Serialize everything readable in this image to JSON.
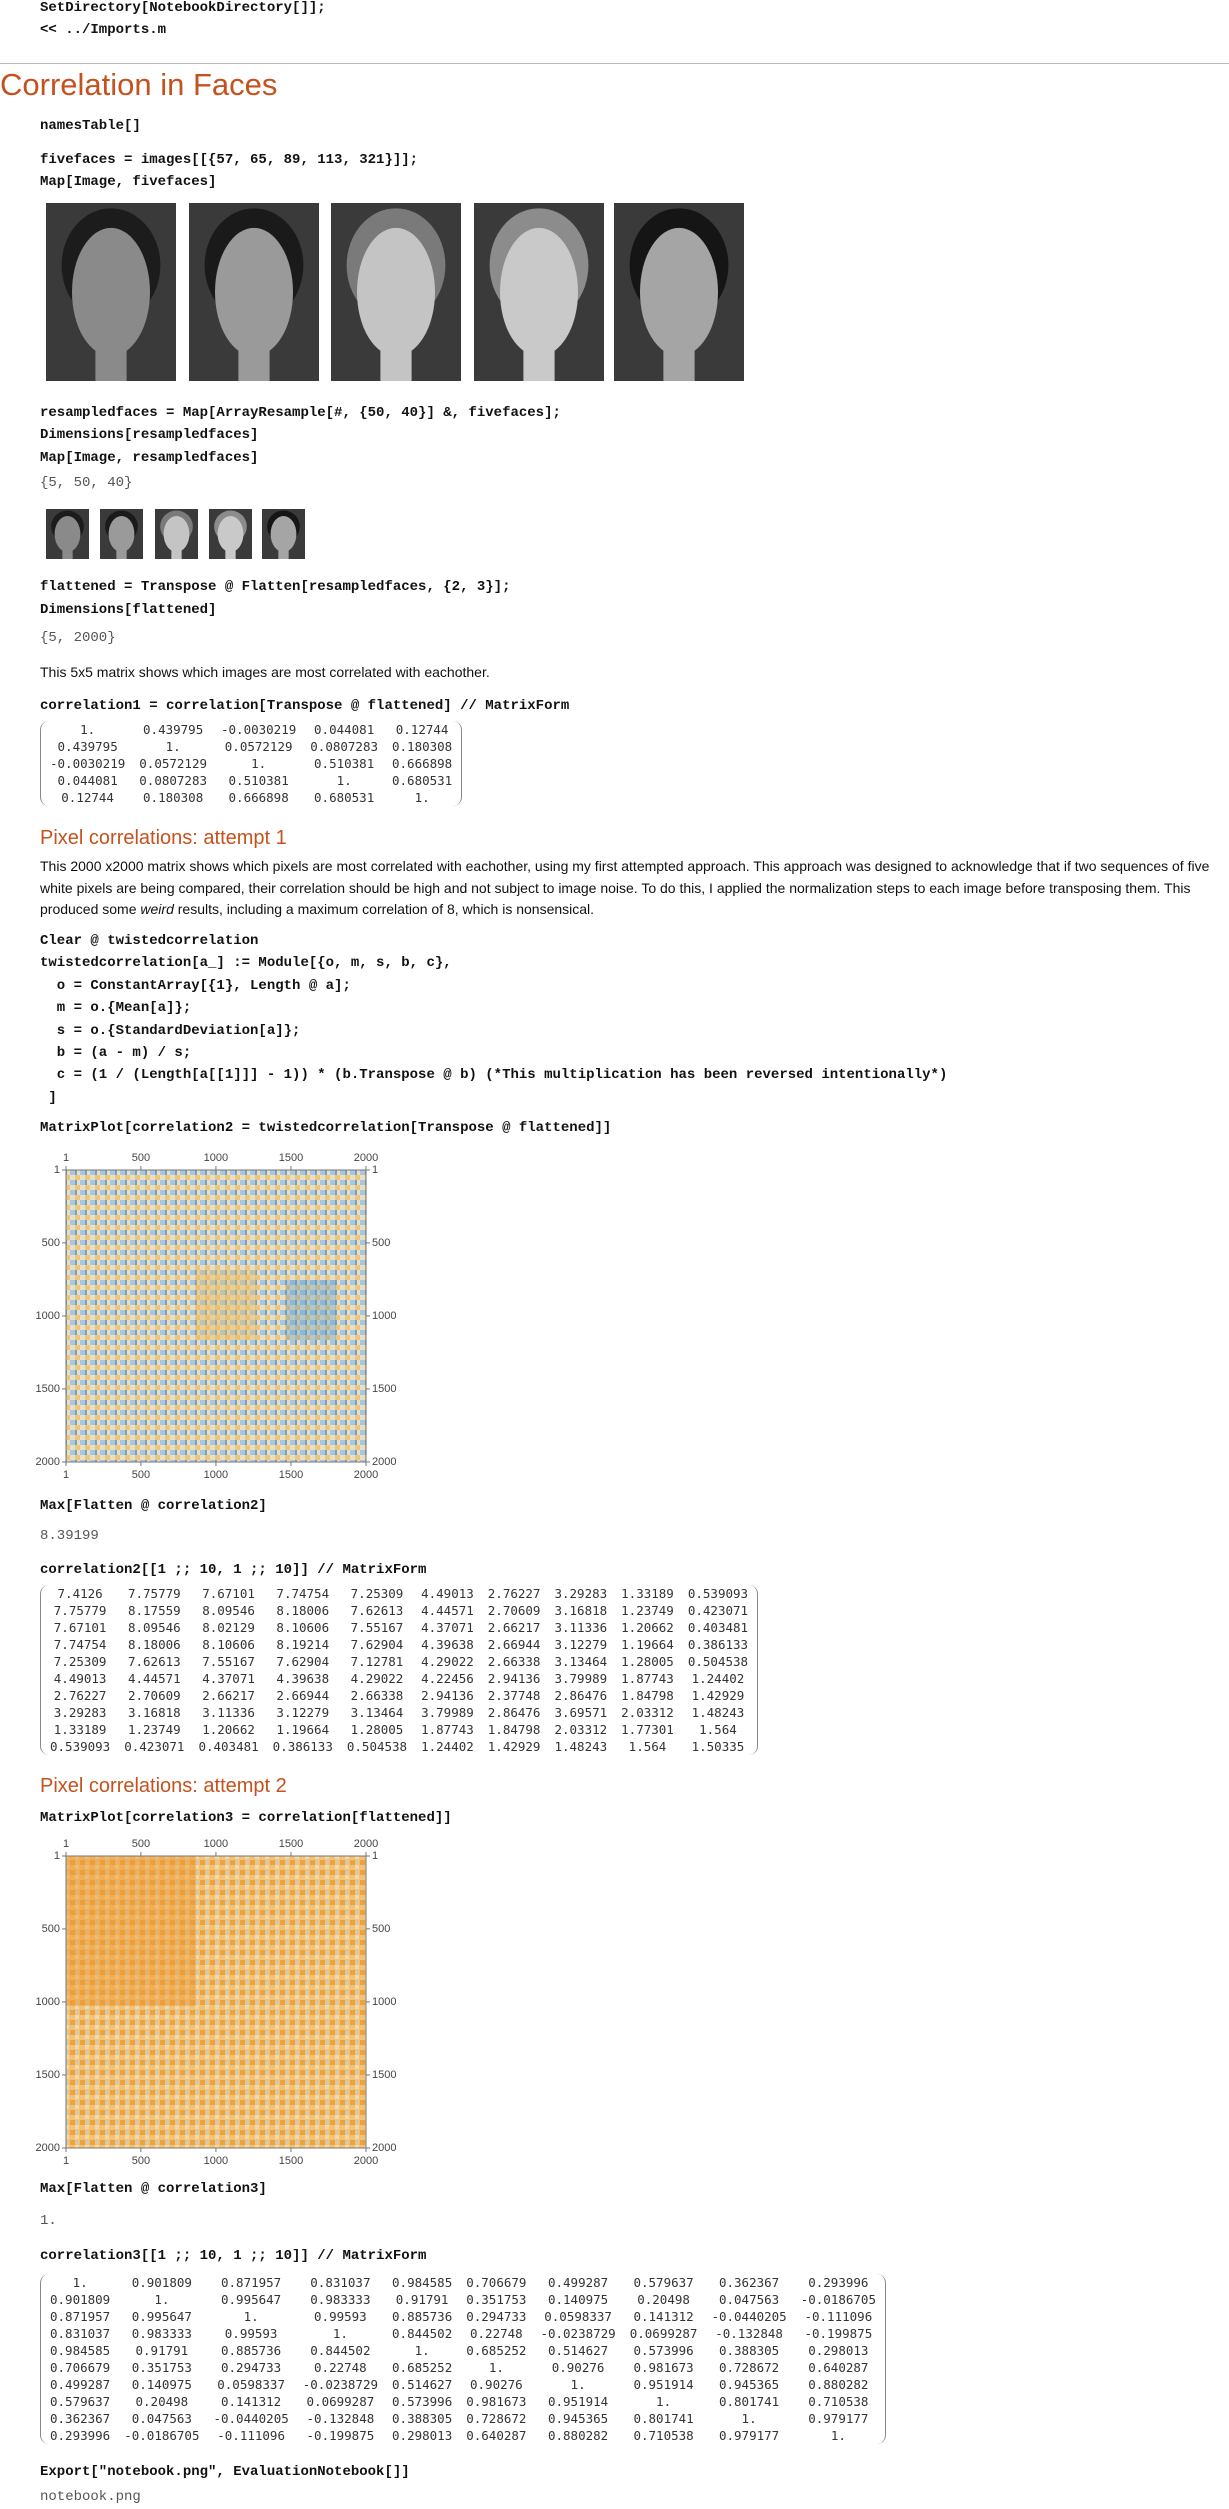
{
  "setup": [
    "SetDirectory[NotebookDirectory[]];",
    "<< ../Imports.m"
  ],
  "title": "Correlation in Faces",
  "names_input": "namesTable[]",
  "fivefaces_input": [
    "fivefaces = images[[{57, 65, 89, 113, 321}]];",
    "Map[Image, fivefaces]"
  ],
  "resample_input": [
    "resampledfaces = Map[ArrayResample[#, {50, 40}] &, fivefaces];",
    "Dimensions[resampledfaces]",
    "Map[Image, resampledfaces]"
  ],
  "resample_output": "{5, 50, 40}",
  "flatten_input": [
    "flattened = Transpose @ Flatten[resampledfaces, {2, 3}];",
    "Dimensions[flattened]"
  ],
  "flatten_output": "{5, 2000}",
  "matrix_text": "This 5x5 matrix shows which images are most correlated with eachother.",
  "correlation1_input": "correlation1 = correlation[Transpose @ flattened] // MatrixForm",
  "correlation1": [
    [
      "1.",
      "0.439795",
      "-0.0030219",
      "0.044081",
      "0.12744"
    ],
    [
      "0.439795",
      "1.",
      "0.0572129",
      "0.0807283",
      "0.180308"
    ],
    [
      "-0.0030219",
      "0.0572129",
      "1.",
      "0.510381",
      "0.666898"
    ],
    [
      "0.044081",
      "0.0807283",
      "0.510381",
      "1.",
      "0.680531"
    ],
    [
      "0.12744",
      "0.180308",
      "0.666898",
      "0.680531",
      "1."
    ]
  ],
  "plot_ticks": [
    1,
    500,
    1000,
    1500,
    2000
  ],
  "attempt1": {
    "heading": "Pixel correlations: attempt 1",
    "paragraph": [
      "This 2000 x2000 matrix shows which pixels are most correlated with eachother, using my first attempted approach. This approach was designed to acknowledge that if two sequences of five white pixels are being compared, their correlation should be high and not subject to image noise. To do this, I applied the normalization steps to each image before transposing them. This produced some ",
      "weird",
      " results, including a maximum correlation of 8, which is nonsensical."
    ],
    "code": [
      "Clear @ twistedcorrelation",
      "twistedcorrelation[a_] := Module[{o, m, s, b, c},",
      "  o = ConstantArray[{1}, Length @ a];",
      "  m = o.{Mean[a]};",
      "  s = o.{StandardDeviation[a]};",
      "  b = (a - m) / s;",
      "  c = (1 / (Length[a[[1]]] - 1)) * (b.Transpose @ b) (*This multiplication has been reversed intentionally*)",
      " ]"
    ],
    "plot_input": "MatrixPlot[correlation2 = twistedcorrelation[Transpose @ flattened]]",
    "max_input": "Max[Flatten @ correlation2]",
    "max_output": "8.39199",
    "matrix_input": "correlation2[[1 ;; 10, 1 ;; 10]] // MatrixForm",
    "matrix": [
      [
        "7.4126",
        "7.75779",
        "7.67101",
        "7.74754",
        "7.25309",
        "4.49013",
        "2.76227",
        "3.29283",
        "1.33189",
        "0.539093"
      ],
      [
        "7.75779",
        "8.17559",
        "8.09546",
        "8.18006",
        "7.62613",
        "4.44571",
        "2.70609",
        "3.16818",
        "1.23749",
        "0.423071"
      ],
      [
        "7.67101",
        "8.09546",
        "8.02129",
        "8.10606",
        "7.55167",
        "4.37071",
        "2.66217",
        "3.11336",
        "1.20662",
        "0.403481"
      ],
      [
        "7.74754",
        "8.18006",
        "8.10606",
        "8.19214",
        "7.62904",
        "4.39638",
        "2.66944",
        "3.12279",
        "1.19664",
        "0.386133"
      ],
      [
        "7.25309",
        "7.62613",
        "7.55167",
        "7.62904",
        "7.12781",
        "4.29022",
        "2.66338",
        "3.13464",
        "1.28005",
        "0.504538"
      ],
      [
        "4.49013",
        "4.44571",
        "4.37071",
        "4.39638",
        "4.29022",
        "4.22456",
        "2.94136",
        "3.79989",
        "1.87743",
        "1.24402"
      ],
      [
        "2.76227",
        "2.70609",
        "2.66217",
        "2.66944",
        "2.66338",
        "2.94136",
        "2.37748",
        "2.86476",
        "1.84798",
        "1.42929"
      ],
      [
        "3.29283",
        "3.16818",
        "3.11336",
        "3.12279",
        "3.13464",
        "3.79989",
        "2.86476",
        "3.69571",
        "2.03312",
        "1.48243"
      ],
      [
        "1.33189",
        "1.23749",
        "1.20662",
        "1.19664",
        "1.28005",
        "1.87743",
        "1.84798",
        "2.03312",
        "1.77301",
        "1.564"
      ],
      [
        "0.539093",
        "0.423071",
        "0.403481",
        "0.386133",
        "0.504538",
        "1.24402",
        "1.42929",
        "1.48243",
        "1.564",
        "1.50335"
      ]
    ]
  },
  "attempt2": {
    "heading": "Pixel correlations: attempt 2",
    "plot_input": "MatrixPlot[correlation3 = correlation[flattened]]",
    "max_input": "Max[Flatten @ correlation3]",
    "max_output": "1.",
    "matrix_input": "correlation3[[1 ;; 10, 1 ;; 10]] // MatrixForm",
    "matrix": [
      [
        "1.",
        "0.901809",
        "0.871957",
        "0.831037",
        "0.984585",
        "0.706679",
        "0.499287",
        "0.579637",
        "0.362367",
        "0.293996"
      ],
      [
        "0.901809",
        "1.",
        "0.995647",
        "0.983333",
        "0.91791",
        "0.351753",
        "0.140975",
        "0.20498",
        "0.047563",
        "-0.0186705"
      ],
      [
        "0.871957",
        "0.995647",
        "1.",
        "0.99593",
        "0.885736",
        "0.294733",
        "0.0598337",
        "0.141312",
        "-0.0440205",
        "-0.111096"
      ],
      [
        "0.831037",
        "0.983333",
        "0.99593",
        "1.",
        "0.844502",
        "0.22748",
        "-0.0238729",
        "0.0699287",
        "-0.132848",
        "-0.199875"
      ],
      [
        "0.984585",
        "0.91791",
        "0.885736",
        "0.844502",
        "1.",
        "0.685252",
        "0.514627",
        "0.573996",
        "0.388305",
        "0.298013"
      ],
      [
        "0.706679",
        "0.351753",
        "0.294733",
        "0.22748",
        "0.685252",
        "1.",
        "0.90276",
        "0.981673",
        "0.728672",
        "0.640287"
      ],
      [
        "0.499287",
        "0.140975",
        "0.0598337",
        "-0.0238729",
        "0.514627",
        "0.90276",
        "1.",
        "0.951914",
        "0.945365",
        "0.880282"
      ],
      [
        "0.579637",
        "0.20498",
        "0.141312",
        "0.0699287",
        "0.573996",
        "0.981673",
        "0.951914",
        "1.",
        "0.801741",
        "0.710538"
      ],
      [
        "0.362367",
        "0.047563",
        "-0.0440205",
        "-0.132848",
        "0.388305",
        "0.728672",
        "0.945365",
        "0.801741",
        "1.",
        "0.979177"
      ],
      [
        "0.293996",
        "-0.0186705",
        "-0.111096",
        "-0.199875",
        "0.298013",
        "0.640287",
        "0.880282",
        "0.710538",
        "0.979177",
        "1."
      ]
    ]
  },
  "export_input": "Export[\"notebook.png\", EvaluationNotebook[]]",
  "export_output": "notebook.png"
}
